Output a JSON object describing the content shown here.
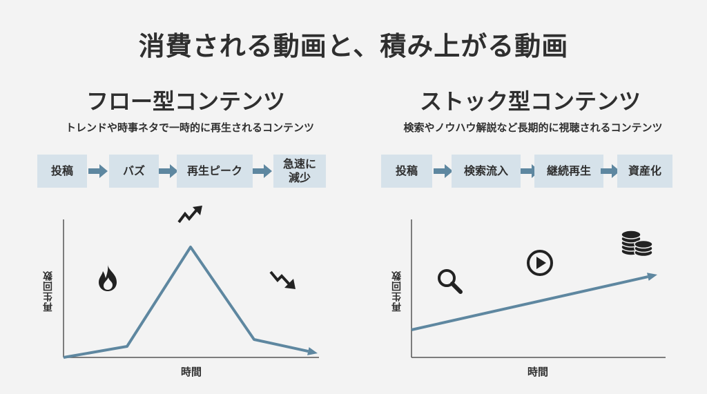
{
  "title": "消費される動画と、積み上がる動画",
  "colors": {
    "box": "#d6e2ea",
    "arrow": "#5e87a0",
    "line": "#5e87a0",
    "text": "#2f2f2f",
    "axis": "#555555"
  },
  "flow": {
    "heading": "フロー型コンテンツ",
    "subtitle": "トレンドや時事ネタで一時的に再生されるコンテンツ",
    "steps": [
      "投稿",
      "バズ",
      "再生ピーク",
      "急速に減少"
    ],
    "icons": [
      "flame-icon",
      "trend-up-icon",
      "trend-down-icon"
    ],
    "chart": {
      "ylabel": "再生回数",
      "xlabel": "時間"
    }
  },
  "stock": {
    "heading": "ストック型コンテンツ",
    "subtitle": "検索やノウハウ解説など長期的に視聴されるコンテンツ",
    "steps": [
      "投稿",
      "検索流入",
      "継続再生",
      "資産化"
    ],
    "icons": [
      "search-icon",
      "play-icon",
      "coins-icon"
    ],
    "chart": {
      "ylabel": "再生回数",
      "xlabel": "時間"
    }
  },
  "chart_data": [
    {
      "type": "line",
      "title": "",
      "xlabel": "時間",
      "ylabel": "再生回数",
      "x": [
        0,
        1,
        2,
        3,
        4
      ],
      "values": [
        0,
        8,
        80,
        13,
        3
      ],
      "ylim": [
        0,
        100
      ]
    },
    {
      "type": "line",
      "title": "",
      "xlabel": "時間",
      "ylabel": "再生回数",
      "x": [
        0,
        1
      ],
      "values": [
        20,
        60
      ],
      "ylim": [
        0,
        100
      ]
    }
  ]
}
